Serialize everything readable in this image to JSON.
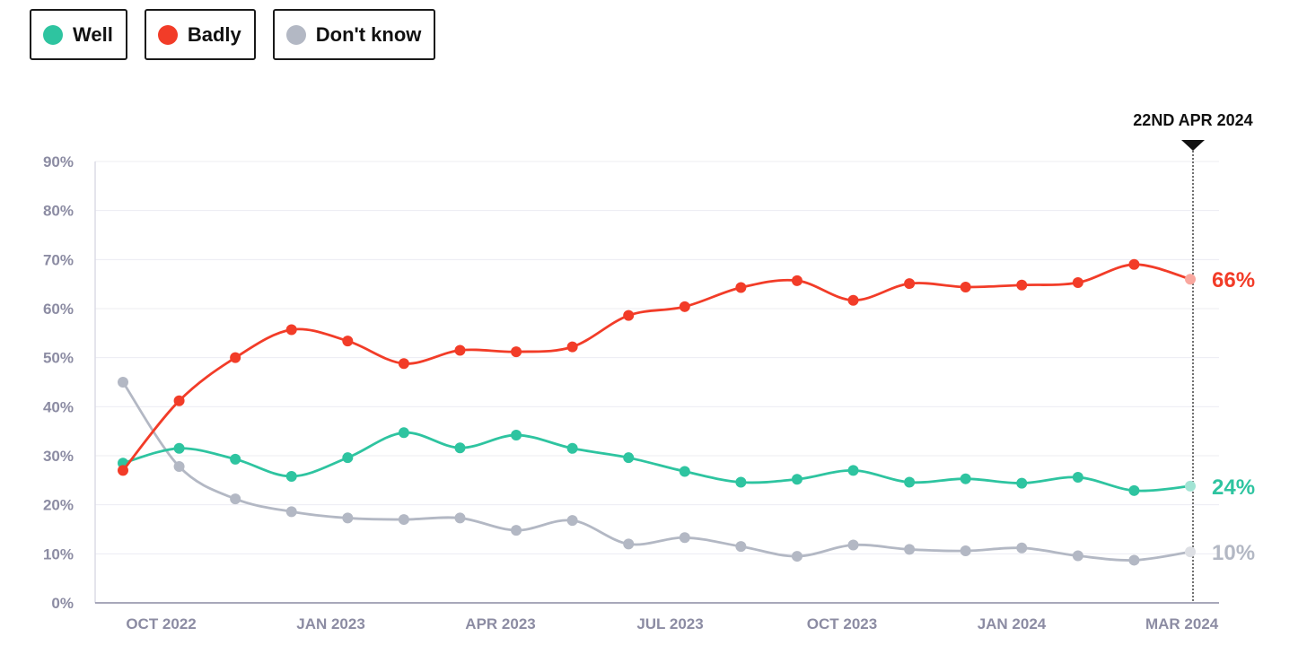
{
  "legend": {
    "items": [
      {
        "label": "Well",
        "color": "#2ec4a0"
      },
      {
        "label": "Badly",
        "color": "#f23c28"
      },
      {
        "label": "Don't know",
        "color": "#b3b8c4"
      }
    ]
  },
  "chart_data": {
    "type": "line",
    "title": "",
    "xlabel": "",
    "ylabel": "",
    "ylim": [
      0,
      90
    ],
    "x_tick_labels": [
      "OCT 2022",
      "JAN 2023",
      "APR 2023",
      "JUL 2023",
      "OCT 2023",
      "JAN 2024",
      "MAR 2024"
    ],
    "y_tick_labels": [
      "0%",
      "10%",
      "20%",
      "30%",
      "40%",
      "50%",
      "60%",
      "70%",
      "80%",
      "90%"
    ],
    "y_ticks": [
      0,
      10,
      20,
      30,
      40,
      50,
      60,
      70,
      80,
      90
    ],
    "annotation": "22ND APR 2024",
    "series": [
      {
        "name": "Well",
        "color": "#2ec4a0",
        "end_label": "24%",
        "values": [
          28.5,
          31.5,
          29.3,
          25.8,
          29.6,
          34.7,
          31.6,
          34.2,
          31.5,
          29.6,
          26.8,
          24.6,
          25.2,
          27.0,
          24.6,
          25.3,
          24.4,
          25.6,
          22.9,
          23.8
        ]
      },
      {
        "name": "Badly",
        "color": "#f23c28",
        "end_label": "66%",
        "values": [
          27.0,
          41.2,
          50.0,
          55.7,
          53.4,
          48.8,
          51.5,
          51.2,
          52.2,
          58.6,
          60.4,
          64.3,
          65.7,
          61.7,
          65.1,
          64.4,
          64.8,
          65.3,
          69.0,
          66.0
        ]
      },
      {
        "name": "Don't know",
        "color": "#b3b8c4",
        "end_label": "10%",
        "values": [
          45.0,
          27.8,
          21.2,
          18.6,
          17.3,
          17.0,
          17.3,
          14.8,
          16.8,
          12.0,
          13.3,
          11.5,
          9.5,
          11.8,
          10.9,
          10.6,
          11.2,
          9.6,
          8.7,
          10.4
        ]
      }
    ]
  }
}
